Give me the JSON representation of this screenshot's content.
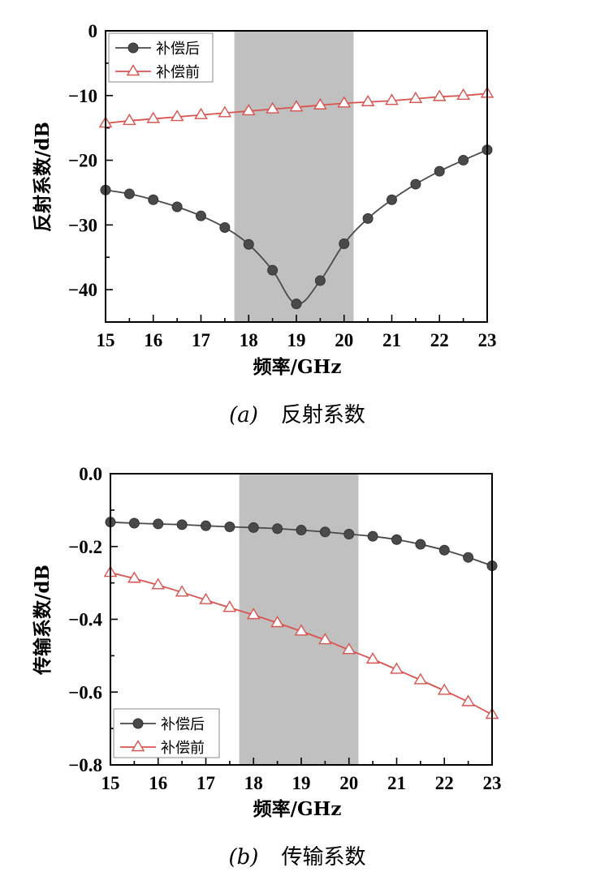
{
  "chart_data": [
    {
      "type": "line",
      "caption": {
        "label": "(a)",
        "text": "反射系数"
      },
      "xlabel": "频率/GHz",
      "ylabel": "反射系数/dB",
      "xlim": [
        15,
        23
      ],
      "ylim": [
        -45,
        0
      ],
      "x_ticks": [
        "15",
        "16",
        "17",
        "18",
        "19",
        "20",
        "21",
        "22",
        "23"
      ],
      "y_ticks": [
        "0",
        "−10",
        "−20",
        "−30",
        "−40"
      ],
      "y_tick_values": [
        0,
        -10,
        -20,
        -30,
        -40
      ],
      "shaded_band": [
        17.7,
        20.2
      ],
      "legend_position": "top-left",
      "grid": false,
      "series": [
        {
          "name": "补偿后",
          "marker": "filled-circle",
          "color": "#4a4a4a",
          "x": [
            15,
            15.5,
            16,
            16.5,
            17,
            17.5,
            18,
            18.5,
            19,
            19.5,
            20,
            20.5,
            21,
            21.5,
            22,
            22.5,
            23
          ],
          "y": [
            -24.6,
            -25.2,
            -26.1,
            -27.2,
            -28.6,
            -30.4,
            -33.0,
            -37.0,
            -42.2,
            -38.6,
            -32.9,
            -29.0,
            -26.1,
            -23.7,
            -21.7,
            -20.0,
            -18.4
          ]
        },
        {
          "name": "补偿前",
          "marker": "open-triangle",
          "color": "#d9534f",
          "x": [
            15,
            15.5,
            16,
            16.5,
            17,
            17.5,
            18,
            18.5,
            19,
            19.5,
            20,
            20.5,
            21,
            21.5,
            22,
            22.5,
            23
          ],
          "y": [
            -14.3,
            -13.9,
            -13.6,
            -13.3,
            -13.0,
            -12.7,
            -12.4,
            -12.1,
            -11.8,
            -11.5,
            -11.2,
            -11.0,
            -10.8,
            -10.5,
            -10.2,
            -10.0,
            -9.7
          ]
        }
      ]
    },
    {
      "type": "line",
      "caption": {
        "label": "(b)",
        "text": "传输系数"
      },
      "xlabel": "频率/GHz",
      "ylabel": "传输系数/dB",
      "xlim": [
        15,
        23
      ],
      "ylim": [
        -0.8,
        0
      ],
      "x_ticks": [
        "15",
        "16",
        "17",
        "18",
        "19",
        "20",
        "21",
        "22",
        "23"
      ],
      "y_ticks": [
        "0.0",
        "−0.2",
        "−0.4",
        "−0.6",
        "−0.8"
      ],
      "y_tick_values": [
        0,
        -0.2,
        -0.4,
        -0.6,
        -0.8
      ],
      "shaded_band": [
        17.7,
        20.2
      ],
      "legend_position": "bottom-left",
      "grid": false,
      "series": [
        {
          "name": "补偿后",
          "marker": "filled-circle",
          "color": "#4a4a4a",
          "x": [
            15,
            15.5,
            16,
            16.5,
            17,
            17.5,
            18,
            18.5,
            19,
            19.5,
            20,
            20.5,
            21,
            21.5,
            22,
            22.5,
            23
          ],
          "y": [
            -0.133,
            -0.136,
            -0.138,
            -0.14,
            -0.143,
            -0.146,
            -0.148,
            -0.151,
            -0.155,
            -0.16,
            -0.166,
            -0.172,
            -0.181,
            -0.194,
            -0.21,
            -0.23,
            -0.253
          ]
        },
        {
          "name": "补偿前",
          "marker": "open-triangle",
          "color": "#d9534f",
          "x": [
            15,
            15.5,
            16,
            16.5,
            17,
            17.5,
            18,
            18.5,
            19,
            19.5,
            20,
            20.5,
            21,
            21.5,
            22,
            22.5,
            23
          ],
          "y": [
            -0.272,
            -0.288,
            -0.306,
            -0.326,
            -0.347,
            -0.368,
            -0.388,
            -0.41,
            -0.433,
            -0.457,
            -0.484,
            -0.51,
            -0.538,
            -0.567,
            -0.596,
            -0.627,
            -0.662
          ]
        }
      ]
    }
  ]
}
